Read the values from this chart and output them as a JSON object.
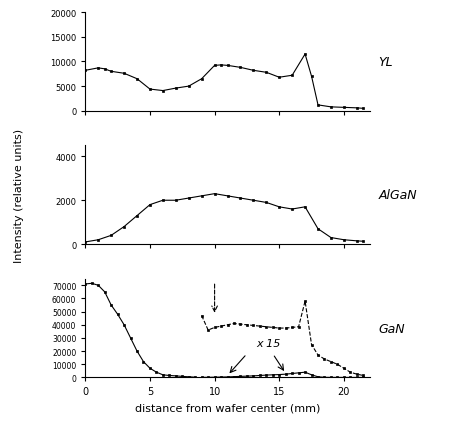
{
  "YL_x": [
    0,
    1,
    1.5,
    2,
    3,
    4,
    5,
    6,
    7,
    8,
    9,
    10,
    10.5,
    11,
    12,
    13,
    14,
    15,
    16,
    17,
    17.5,
    18,
    19,
    20,
    21,
    21.5
  ],
  "YL_y": [
    8200,
    8700,
    8500,
    8000,
    7600,
    6500,
    4400,
    4100,
    4600,
    5000,
    6500,
    9200,
    9300,
    9200,
    8800,
    8200,
    7800,
    6800,
    7200,
    11500,
    7000,
    1200,
    800,
    700,
    600,
    500
  ],
  "AlGaN_x": [
    0,
    1,
    2,
    3,
    4,
    5,
    6,
    7,
    8,
    9,
    10,
    11,
    12,
    13,
    14,
    15,
    16,
    17,
    18,
    19,
    20,
    21,
    21.5
  ],
  "AlGaN_y": [
    100,
    200,
    400,
    800,
    1300,
    1800,
    2000,
    2000,
    2100,
    2200,
    2300,
    2200,
    2100,
    2000,
    1900,
    1700,
    1600,
    1700,
    700,
    300,
    200,
    150,
    130
  ],
  "GaN_x_solid": [
    0,
    0.5,
    1,
    1.5,
    2,
    2.5,
    3,
    3.5,
    4,
    4.5,
    5,
    5.5,
    6,
    6.5,
    7,
    7.5,
    8,
    8.5
  ],
  "GaN_y_solid": [
    71000,
    71500,
    70000,
    65000,
    55000,
    48000,
    40000,
    30000,
    20000,
    12000,
    7000,
    4000,
    2000,
    1500,
    1200,
    800,
    500,
    200
  ],
  "GaN_x_dashed": [
    9,
    9.5,
    10,
    10.5,
    11,
    11.5,
    12,
    12.5,
    13,
    13.5,
    14,
    14.5,
    15,
    15.5,
    16,
    16.5,
    17,
    17.5,
    18,
    18.5,
    19,
    19.5,
    20,
    20.5,
    21,
    21.5
  ],
  "GaN_y_dashed": [
    47000,
    36000,
    38000,
    39000,
    40000,
    41000,
    40500,
    40000,
    39500,
    39000,
    38500,
    38000,
    37500,
    37500,
    38000,
    38500,
    58000,
    25000,
    17000,
    14000,
    12000,
    10000,
    7000,
    4000,
    2500,
    1500
  ],
  "GaN_x_solid2": [
    9,
    9.5,
    10,
    10.5,
    11,
    11.5,
    12,
    12.5,
    13,
    13.5,
    14,
    14.5,
    15,
    15.5,
    16,
    16.5,
    17,
    17.5,
    18,
    18.5,
    19,
    19.5,
    20,
    20.5,
    21,
    21.5
  ],
  "GaN_y_solid2": [
    100,
    100,
    200,
    300,
    400,
    600,
    800,
    1000,
    1200,
    1500,
    1800,
    2000,
    2200,
    2500,
    3000,
    3500,
    4000,
    2000,
    500,
    100,
    50,
    30,
    20,
    10,
    5,
    5
  ],
  "xlabel": "distance from wafer center (mm)",
  "ylabel": "Intensity (relative units)",
  "YL_label": "YL",
  "AlGaN_label": "AlGaN",
  "GaN_label": "GaN",
  "bg_color": "#ffffff",
  "line_color": "#000000"
}
